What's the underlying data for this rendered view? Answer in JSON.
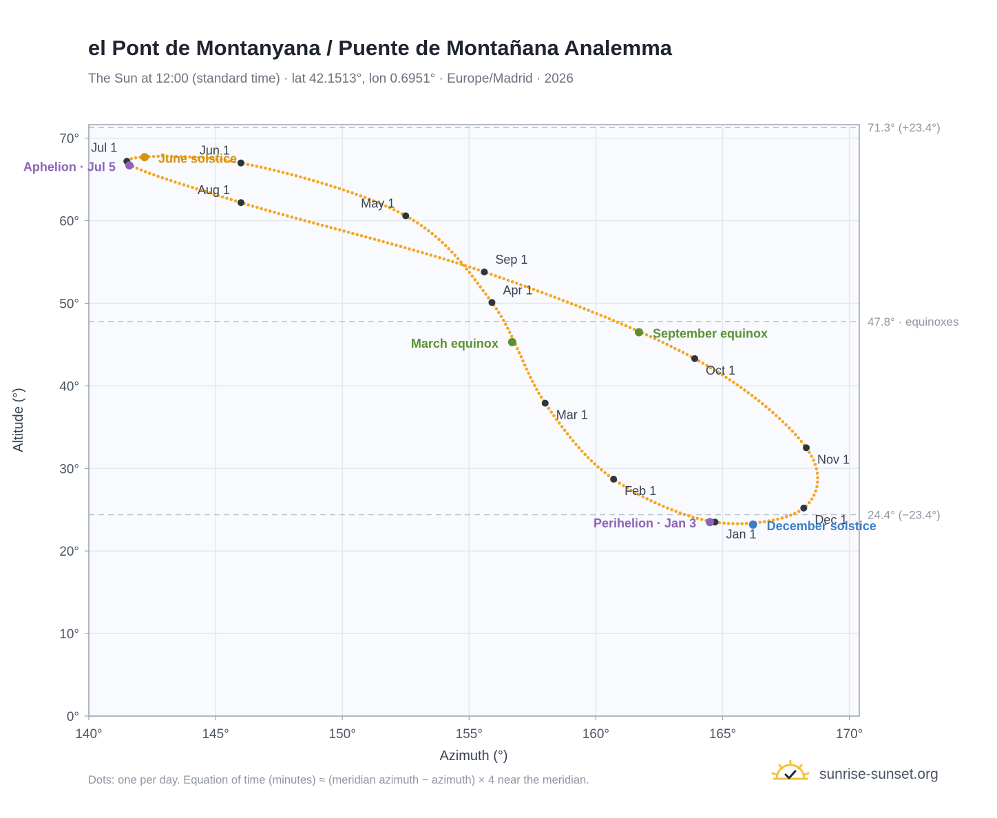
{
  "title": "el Pont de Montanyana / Puente de Montañana Analemma",
  "subtitle": "The Sun at 12:00 (standard time) · lat 42.1513°, lon 0.6951° · Europe/Madrid · 2026",
  "footnote": "Dots: one per day. Equation of time (minutes) ≈ (meridian azimuth − azimuth) × 4 near the meridian.",
  "brand": {
    "name": "sunrise-sunset.org",
    "logo_icon": "sun-logo-icon"
  },
  "chart_data": {
    "type": "scatter",
    "xlabel": "Azimuth (°)",
    "ylabel": "Altitude (°)",
    "xlim": [
      140,
      170.3
    ],
    "ylim": [
      0,
      71.8
    ],
    "x_ticks": [
      {
        "v": 140,
        "label": "140°"
      },
      {
        "v": 145,
        "label": "145°"
      },
      {
        "v": 150,
        "label": "150°"
      },
      {
        "v": 155,
        "label": "155°"
      },
      {
        "v": 160,
        "label": "160°"
      },
      {
        "v": 165,
        "label": "165°"
      },
      {
        "v": 170,
        "label": "170°"
      }
    ],
    "y_ticks": [
      {
        "v": 0,
        "label": "0°"
      },
      {
        "v": 10,
        "label": "10°"
      },
      {
        "v": 20,
        "label": "20°"
      },
      {
        "v": 30,
        "label": "30°"
      },
      {
        "v": 40,
        "label": "40°"
      },
      {
        "v": 50,
        "label": "50°"
      },
      {
        "v": 60,
        "label": "60°"
      },
      {
        "v": 70,
        "label": "70°"
      }
    ],
    "grid": true,
    "reference_lines": [
      {
        "y": 71.3,
        "label": "71.3° (+23.4°)"
      },
      {
        "y": 47.8,
        "label": "47.8° · equinoxes"
      },
      {
        "y": 24.4,
        "label": "24.4° (−23.4°)"
      }
    ],
    "path_points": [
      [
        164.7,
        23.5
      ],
      [
        160.7,
        28.7
      ],
      [
        158.0,
        37.9
      ],
      [
        155.9,
        50.1
      ],
      [
        152.5,
        60.6
      ],
      [
        146.0,
        67.0
      ],
      [
        141.5,
        67.2
      ],
      [
        146.0,
        62.2
      ],
      [
        155.6,
        53.8
      ],
      [
        163.9,
        43.3
      ],
      [
        168.3,
        32.5
      ],
      [
        168.2,
        25.2
      ],
      [
        164.7,
        23.5
      ]
    ],
    "path_dates": [
      "Jan 1",
      "Feb 1",
      "Mar 1",
      "Apr 1",
      "May 1",
      "Jun 1",
      "Jul 1",
      "Aug 1",
      "Sep 1",
      "Oct 1",
      "Nov 1",
      "Dec 1",
      "Jan 1"
    ],
    "month_markers": [
      {
        "label": "Jan 1",
        "x": 164.7,
        "y": 23.5
      },
      {
        "label": "Feb 1",
        "x": 160.7,
        "y": 28.7
      },
      {
        "label": "Mar 1",
        "x": 158.0,
        "y": 37.9
      },
      {
        "label": "Apr 1",
        "x": 155.9,
        "y": 50.1
      },
      {
        "label": "May 1",
        "x": 152.5,
        "y": 60.6
      },
      {
        "label": "Jun 1",
        "x": 146.0,
        "y": 67.0
      },
      {
        "label": "Jul 1",
        "x": 141.5,
        "y": 67.2
      },
      {
        "label": "Aug 1",
        "x": 146.0,
        "y": 62.2
      },
      {
        "label": "Sep 1",
        "x": 155.6,
        "y": 53.8
      },
      {
        "label": "Oct 1",
        "x": 163.9,
        "y": 43.3
      },
      {
        "label": "Nov 1",
        "x": 168.3,
        "y": 32.5
      },
      {
        "label": "Dec 1",
        "x": 168.2,
        "y": 25.2
      }
    ],
    "events": [
      {
        "label": "June solstice",
        "x": 142.2,
        "y": 67.7,
        "color": "#d4920f"
      },
      {
        "label": "Aphelion · Jul 5",
        "x": 141.6,
        "y": 66.7,
        "color": "#8e63b5"
      },
      {
        "label": "March equinox",
        "x": 156.7,
        "y": 45.3,
        "color": "#5a9233"
      },
      {
        "label": "September equinox",
        "x": 161.7,
        "y": 46.5,
        "color": "#5a9233"
      },
      {
        "label": "Perihelion · Jan 3",
        "x": 164.5,
        "y": 23.5,
        "color": "#8e63b5"
      },
      {
        "label": "December solstice",
        "x": 166.2,
        "y": 23.2,
        "color": "#3d7fc7"
      }
    ],
    "colors": {
      "path": "#f5a623",
      "marker": "#2f3540",
      "grid": "#e3e7ee",
      "reference": "#b8c0cc",
      "plot_bg": "#f8fafd",
      "frame": "#9aa3b2"
    }
  }
}
